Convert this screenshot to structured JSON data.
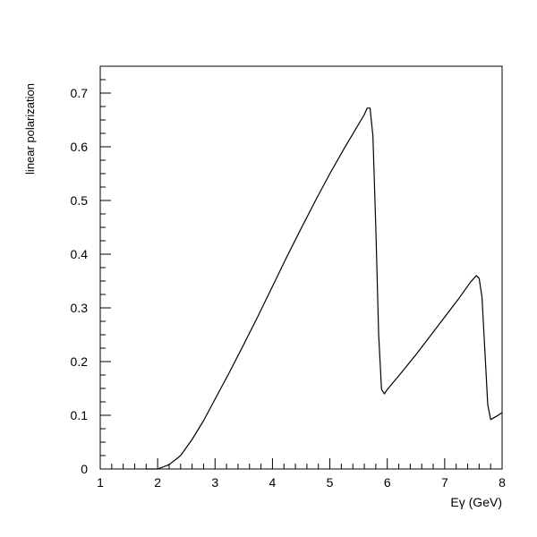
{
  "chart_data": {
    "type": "line",
    "title": "",
    "xlabel": "Eγ (GeV)",
    "ylabel": "linear polarization",
    "xlim": [
      1,
      8
    ],
    "ylim": [
      0,
      0.75
    ],
    "x_ticks": [
      1,
      2,
      3,
      4,
      5,
      6,
      7,
      8
    ],
    "x_tick_labels": [
      "1",
      "2",
      "3",
      "4",
      "5",
      "6",
      "7",
      "8"
    ],
    "y_ticks": [
      0,
      0.1,
      0.2,
      0.3,
      0.4,
      0.5,
      0.6,
      0.7
    ],
    "y_tick_labels": [
      "0",
      "0.1",
      "0.2",
      "0.3",
      "0.4",
      "0.5",
      "0.6",
      "0.7"
    ],
    "x_minor_step": 0.2,
    "y_minor_step": 0.025,
    "grid": false,
    "colors": {
      "line": "#000000",
      "axes": "#000000",
      "background": "#ffffff"
    },
    "series": [
      {
        "values": [
          [
            1.8,
            0.0
          ],
          [
            2.0,
            0.0
          ],
          [
            2.2,
            0.008
          ],
          [
            2.4,
            0.025
          ],
          [
            2.6,
            0.055
          ],
          [
            2.8,
            0.09
          ],
          [
            3.0,
            0.13
          ],
          [
            3.25,
            0.18
          ],
          [
            3.5,
            0.232
          ],
          [
            3.75,
            0.285
          ],
          [
            4.0,
            0.34
          ],
          [
            4.25,
            0.395
          ],
          [
            4.5,
            0.448
          ],
          [
            4.75,
            0.5
          ],
          [
            5.0,
            0.55
          ],
          [
            5.25,
            0.597
          ],
          [
            5.5,
            0.642
          ],
          [
            5.6,
            0.66
          ],
          [
            5.65,
            0.672
          ],
          [
            5.7,
            0.672
          ],
          [
            5.75,
            0.62
          ],
          [
            5.8,
            0.45
          ],
          [
            5.85,
            0.25
          ],
          [
            5.9,
            0.148
          ],
          [
            5.95,
            0.14
          ],
          [
            6.0,
            0.148
          ],
          [
            6.25,
            0.18
          ],
          [
            6.5,
            0.213
          ],
          [
            6.75,
            0.248
          ],
          [
            7.0,
            0.283
          ],
          [
            7.25,
            0.318
          ],
          [
            7.45,
            0.348
          ],
          [
            7.55,
            0.36
          ],
          [
            7.6,
            0.355
          ],
          [
            7.65,
            0.32
          ],
          [
            7.7,
            0.22
          ],
          [
            7.75,
            0.12
          ],
          [
            7.8,
            0.092
          ],
          [
            7.9,
            0.098
          ],
          [
            8.0,
            0.105
          ]
        ]
      }
    ]
  }
}
